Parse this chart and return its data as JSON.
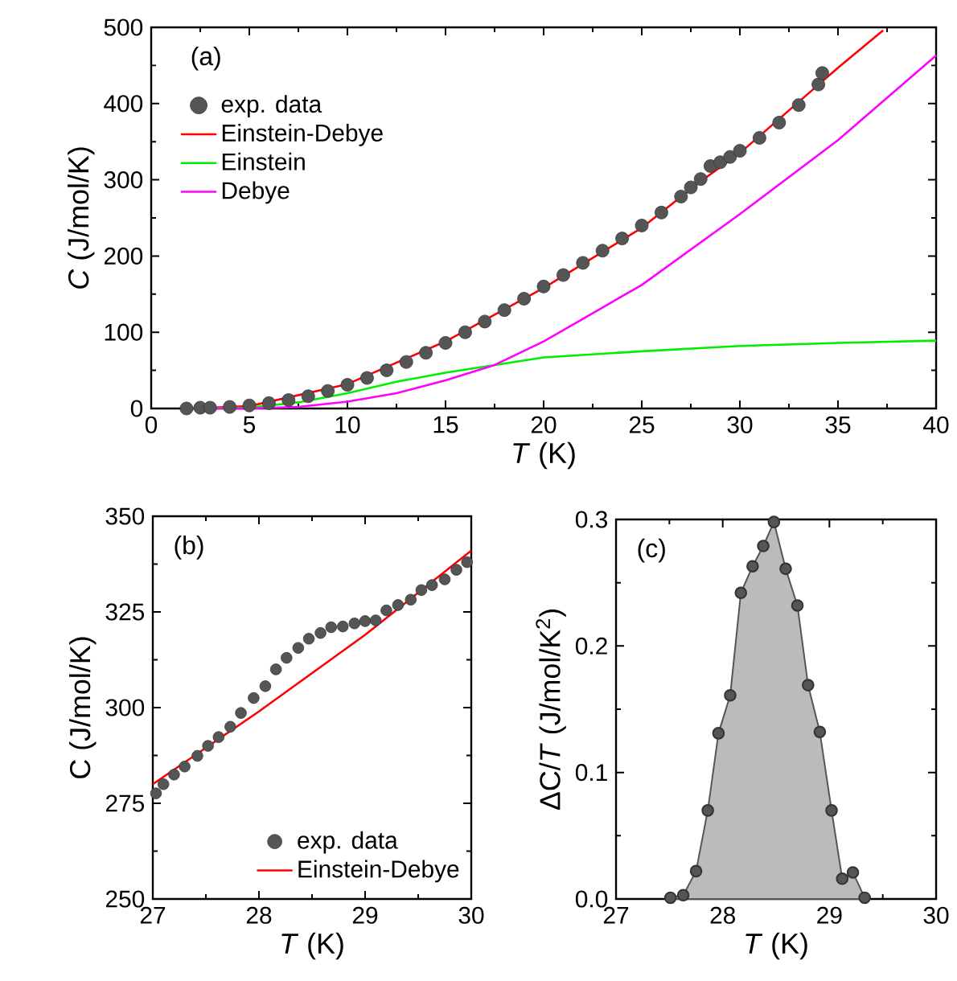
{
  "chart_data": [
    {
      "type": "line",
      "xlabel": "*T* (K)",
      "ylabel": "*C* (J/mol/K)",
      "xlim": [
        0,
        40
      ],
      "ylim": [
        0,
        500
      ],
      "xticks": [
        0,
        5,
        10,
        15,
        20,
        25,
        30,
        35,
        40
      ],
      "yticks": [
        0,
        100,
        200,
        300,
        400,
        500
      ],
      "legend": "top left",
      "annotations": [
        "(a)"
      ],
      "series": [
        {
          "name": "exp. data",
          "type": "scatter",
          "marker": "circle",
          "color": "#555555",
          "x": [
            1.8,
            2.5,
            3,
            4,
            5,
            6,
            7,
            8,
            9,
            10,
            11,
            12,
            13,
            14,
            15,
            16,
            17,
            18,
            19,
            20,
            21,
            22,
            23,
            24,
            25,
            26,
            27,
            27.5,
            28,
            28.5,
            29,
            29.5,
            30,
            31,
            32,
            33,
            34,
            34.2
          ],
          "values": [
            0,
            1,
            1,
            2,
            4,
            7,
            11,
            16,
            23,
            31,
            40,
            50,
            61,
            73,
            86,
            100,
            114,
            129,
            144,
            160,
            175,
            191,
            207,
            223,
            240,
            257,
            278,
            290,
            301,
            318,
            323,
            330,
            338,
            355,
            375,
            398,
            425,
            440
          ]
        },
        {
          "name": "Einstein-Debye",
          "color": "#ff0000",
          "x": [
            2,
            5,
            10,
            15,
            20,
            25,
            28,
            30,
            35,
            37.3
          ],
          "values": [
            0,
            3,
            32,
            88,
            158,
            237,
            298,
            335,
            447,
            496
          ]
        },
        {
          "name": "Einstein",
          "color": "#00ee00",
          "x": [
            2,
            5,
            7.5,
            10,
            12.5,
            15,
            17.5,
            20,
            25,
            30,
            35,
            40
          ],
          "values": [
            0,
            1,
            8,
            20,
            35,
            47,
            57,
            67,
            75,
            82,
            86,
            89
          ]
        },
        {
          "name": "Debye",
          "color": "#ff00ff",
          "x": [
            2,
            5,
            7.5,
            10,
            12.5,
            15,
            17.5,
            20,
            25,
            30,
            35,
            40
          ],
          "values": [
            0,
            0,
            2,
            9,
            20,
            37,
            57,
            88,
            162,
            255,
            352,
            463
          ]
        }
      ]
    },
    {
      "type": "line",
      "xlabel": "*T* (K)",
      "ylabel": "C (J/mol/K)",
      "xlim": [
        27,
        30
      ],
      "ylim": [
        250,
        350
      ],
      "xticks": [
        27,
        28,
        29,
        30
      ],
      "yticks": [
        250,
        275,
        300,
        325,
        350
      ],
      "legend": "bottom right",
      "annotations": [
        "(b)"
      ],
      "series": [
        {
          "name": "exp. data",
          "type": "scatter",
          "marker": "circle",
          "color": "#555555",
          "x": [
            27.03,
            27.1,
            27.2,
            27.3,
            27.42,
            27.52,
            27.62,
            27.73,
            27.83,
            27.95,
            28.06,
            28.16,
            28.26,
            28.37,
            28.47,
            28.58,
            28.68,
            28.79,
            28.9,
            29.0,
            29.1,
            29.2,
            29.31,
            29.43,
            29.53,
            29.63,
            29.75,
            29.86,
            29.96
          ],
          "values": [
            277.6,
            280,
            282.5,
            284.6,
            287.4,
            290,
            292.3,
            295,
            298.6,
            302.5,
            305.6,
            310,
            313,
            315.6,
            318,
            319.5,
            321,
            321.2,
            322,
            322.6,
            322.8,
            325.4,
            326.8,
            328.2,
            330.7,
            332,
            333.5,
            336,
            338
          ]
        },
        {
          "name": "Einstein-Debye",
          "color": "#ff0000",
          "x": [
            27,
            28,
            29,
            30
          ],
          "values": [
            280,
            299,
            319,
            341
          ]
        }
      ]
    },
    {
      "type": "area",
      "xlabel": "*T* (K)",
      "ylabel": "ΔC/*T* (J/mol/K$^{2}$)",
      "xlim": [
        27,
        30
      ],
      "ylim": [
        0,
        0.3
      ],
      "xticks": [
        27,
        28,
        29,
        30
      ],
      "yticks": [
        {
          "value": 0,
          "label": "0.0"
        },
        0.1,
        0.2,
        0.3
      ],
      "annotations": [
        "(c)"
      ],
      "series": [
        {
          "marker": "circle",
          "color": "#555555",
          "x": [
            27.51,
            27.63,
            27.75,
            27.86,
            27.96,
            28.07,
            28.17,
            28.28,
            28.38,
            28.48,
            28.59,
            28.7,
            28.8,
            28.91,
            29.02,
            29.12,
            29.22,
            29.33
          ],
          "values": [
            0.001,
            0.003,
            0.022,
            0.07,
            0.131,
            0.161,
            0.242,
            0.263,
            0.279,
            0.298,
            0.261,
            0.232,
            0.169,
            0.132,
            0.07,
            0.016,
            0.021,
            0.001
          ]
        }
      ]
    }
  ]
}
